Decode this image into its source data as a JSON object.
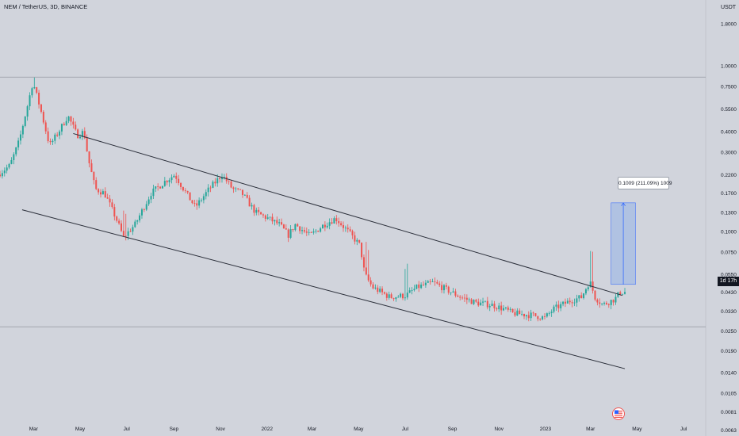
{
  "header": {
    "title": "NEM / TetherUS, 3D, BINANCE",
    "currency": "USDT"
  },
  "chart_data": {
    "type": "candlestick",
    "symbol": "NEM / TetherUS",
    "interval": "3D",
    "exchange": "BINANCE",
    "price_scale": "log",
    "y_ticks": [
      "1.8000",
      "1.0000",
      "0.7500",
      "0.5500",
      "0.4000",
      "0.3000",
      "0.2200",
      "0.1700",
      "0.1300",
      "0.1000",
      "0.0750",
      "0.0550",
      "0.0430",
      "0.0330",
      "0.0250",
      "0.0190",
      "0.0140",
      "0.0105",
      "0.0081",
      "0.0063"
    ],
    "x_ticks": [
      "Mar",
      "May",
      "Jul",
      "Sep",
      "Nov",
      "2022",
      "Mar",
      "May",
      "Jul",
      "Sep",
      "Nov",
      "2023",
      "Mar",
      "May",
      "Jul"
    ],
    "x_range": [
      "2021-01-16",
      "2023-07-30"
    ],
    "y_range": [
      0.0058,
      2.5
    ],
    "horizontal_lines": [
      0.855,
      0.0265
    ],
    "channel": {
      "upper": [
        {
          "date": "2021-04-22",
          "price": 0.39
        },
        {
          "date": "2023-04-12",
          "price": 0.041
        }
      ],
      "lower": [
        {
          "date": "2021-02-14",
          "price": 0.135
        },
        {
          "date": "2023-04-15",
          "price": 0.0148
        }
      ]
    },
    "measurement": {
      "label": "0.1009 (211.09%) 1009",
      "from": {
        "date": "2023-03-28",
        "price": 0.0478
      },
      "to": {
        "date": "2023-04-29",
        "price": 0.1487
      }
    },
    "current_price_tag": "1d 17h",
    "price_anchors": [
      [
        "2021-01-16",
        0.22
      ],
      [
        "2021-02-01",
        0.25
      ],
      [
        "2021-02-13",
        0.35
      ],
      [
        "2021-02-25",
        0.6
      ],
      [
        "2021-03-03",
        0.8
      ],
      [
        "2021-03-13",
        0.55
      ],
      [
        "2021-03-25",
        0.33
      ],
      [
        "2021-04-06",
        0.4
      ],
      [
        "2021-04-18",
        0.5
      ],
      [
        "2021-04-30",
        0.38
      ],
      [
        "2021-05-09",
        0.4
      ],
      [
        "2021-05-15",
        0.27
      ],
      [
        "2021-05-24",
        0.18
      ],
      [
        "2021-06-05",
        0.17
      ],
      [
        "2021-06-20",
        0.12
      ],
      [
        "2021-06-30",
        0.092
      ],
      [
        "2021-07-15",
        0.11
      ],
      [
        "2021-08-05",
        0.17
      ],
      [
        "2021-08-23",
        0.2
      ],
      [
        "2021-09-05",
        0.22
      ],
      [
        "2021-09-20",
        0.17
      ],
      [
        "2021-10-02",
        0.14
      ],
      [
        "2021-10-20",
        0.18
      ],
      [
        "2021-11-06",
        0.22
      ],
      [
        "2021-11-20",
        0.18
      ],
      [
        "2021-12-02",
        0.17
      ],
      [
        "2021-12-20",
        0.13
      ],
      [
        "2022-01-05",
        0.12
      ],
      [
        "2022-01-20",
        0.11
      ],
      [
        "2022-02-01",
        0.095
      ],
      [
        "2022-02-10",
        0.11
      ],
      [
        "2022-03-01",
        0.094
      ],
      [
        "2022-03-20",
        0.11
      ],
      [
        "2022-04-04",
        0.12
      ],
      [
        "2022-04-20",
        0.1
      ],
      [
        "2022-05-06",
        0.082
      ],
      [
        "2022-05-12",
        0.055
      ],
      [
        "2022-05-22",
        0.046
      ],
      [
        "2022-06-14",
        0.04
      ],
      [
        "2022-07-05",
        0.041
      ],
      [
        "2022-07-20",
        0.046
      ],
      [
        "2022-08-10",
        0.049
      ],
      [
        "2022-08-25",
        0.045
      ],
      [
        "2022-09-15",
        0.04
      ],
      [
        "2022-10-05",
        0.037
      ],
      [
        "2022-10-25",
        0.036
      ],
      [
        "2022-11-10",
        0.034
      ],
      [
        "2022-11-22",
        0.032
      ],
      [
        "2022-12-20",
        0.031
      ],
      [
        "2023-01-03",
        0.03
      ],
      [
        "2023-01-15",
        0.034
      ],
      [
        "2023-02-05",
        0.038
      ],
      [
        "2023-02-20",
        0.04
      ],
      [
        "2023-03-03",
        0.05
      ],
      [
        "2023-03-10",
        0.04
      ],
      [
        "2023-03-20",
        0.036
      ],
      [
        "2023-04-05",
        0.039
      ],
      [
        "2023-04-12",
        0.043
      ]
    ],
    "colors": {
      "background": "#d1d4dc",
      "up": "#26a69a",
      "down": "#ef5350",
      "lines": "#2a2e39",
      "measurement_fill": "#a8bde3",
      "measurement_stroke": "#2962ff"
    }
  }
}
